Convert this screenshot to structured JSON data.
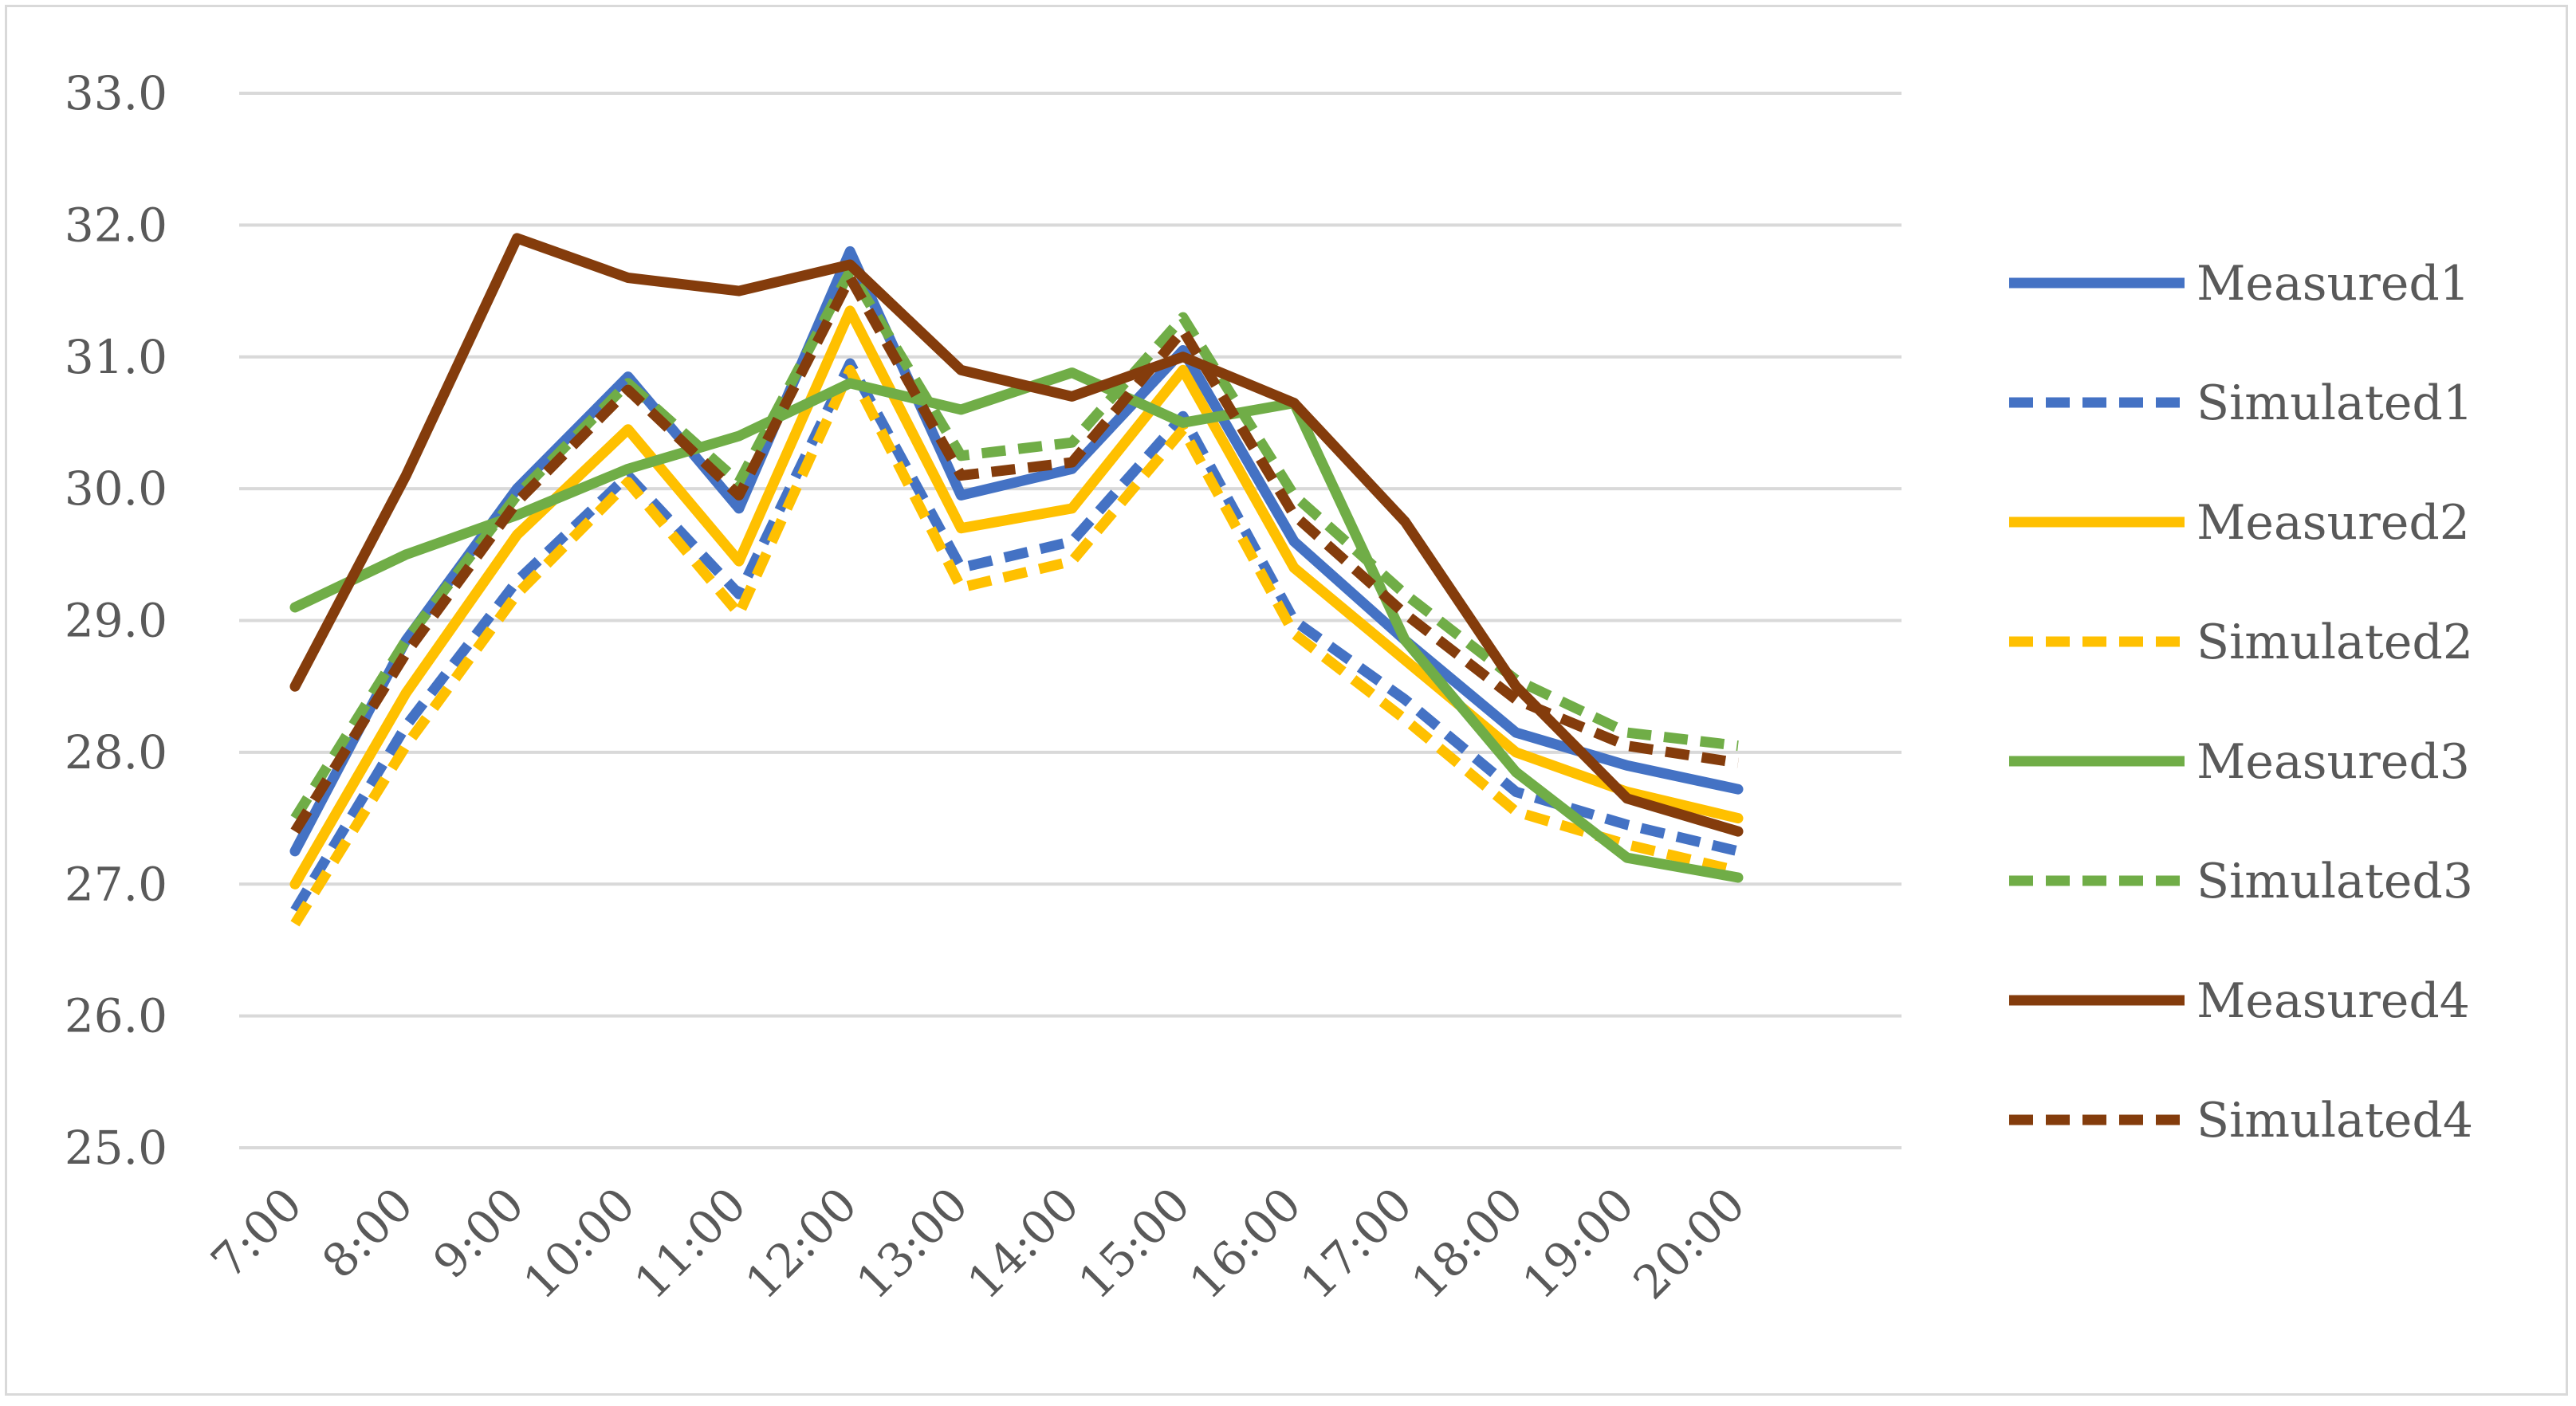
{
  "chart_data": {
    "type": "line",
    "title": "",
    "xlabel": "",
    "ylabel": "",
    "categories": [
      "7:00",
      "8:00",
      "9:00",
      "10:00",
      "11:00",
      "12:00",
      "13:00",
      "14:00",
      "15:00",
      "16:00",
      "17:00",
      "18:00",
      "19:00",
      "20:00"
    ],
    "ylim": [
      25.0,
      33.0
    ],
    "yticks": [
      "25.0",
      "26.0",
      "27.0",
      "28.0",
      "29.0",
      "30.0",
      "31.0",
      "32.0",
      "33.0"
    ],
    "grid": true,
    "legend_position": "right",
    "series": [
      {
        "name": "Measured1",
        "color": "#4472c4",
        "dashed": false,
        "values": [
          27.25,
          28.85,
          30.0,
          30.85,
          29.85,
          31.8,
          29.95,
          30.15,
          31.05,
          29.6,
          28.85,
          28.15,
          27.9,
          27.72
        ]
      },
      {
        "name": "Simulated1",
        "color": "#4472c4",
        "dashed": true,
        "values": [
          26.8,
          28.2,
          29.3,
          30.1,
          29.2,
          30.95,
          29.4,
          29.6,
          30.55,
          29.0,
          28.4,
          27.7,
          27.45,
          27.25
        ]
      },
      {
        "name": "Measured2",
        "color": "#ffc000",
        "dashed": false,
        "values": [
          27.0,
          28.45,
          29.65,
          30.45,
          29.45,
          31.35,
          29.7,
          29.85,
          30.9,
          29.4,
          28.7,
          28.0,
          27.7,
          27.5
        ]
      },
      {
        "name": "Simulated2",
        "color": "#ffc000",
        "dashed": true,
        "values": [
          26.7,
          28.05,
          29.2,
          30.05,
          29.05,
          30.9,
          29.25,
          29.45,
          30.45,
          28.9,
          28.25,
          27.55,
          27.3,
          27.1
        ]
      },
      {
        "name": "Measured3",
        "color": "#70ad47",
        "dashed": false,
        "values": [
          29.1,
          29.5,
          29.8,
          30.15,
          30.4,
          30.8,
          30.6,
          30.88,
          30.5,
          30.65,
          28.85,
          27.85,
          27.2,
          27.05
        ]
      },
      {
        "name": "Simulated3",
        "color": "#70ad47",
        "dashed": true,
        "values": [
          27.5,
          28.85,
          29.95,
          30.8,
          30.05,
          31.65,
          30.25,
          30.35,
          31.3,
          29.95,
          29.2,
          28.55,
          28.15,
          28.05
        ]
      },
      {
        "name": "Measured4",
        "color": "#843c0c",
        "dashed": false,
        "values": [
          28.5,
          30.1,
          31.9,
          31.6,
          31.5,
          31.7,
          30.9,
          30.7,
          31.0,
          30.65,
          29.75,
          28.5,
          27.65,
          27.4
        ]
      },
      {
        "name": "Simulated4",
        "color": "#843c0c",
        "dashed": true,
        "values": [
          27.4,
          28.75,
          29.9,
          30.75,
          29.95,
          31.6,
          30.1,
          30.2,
          31.2,
          29.8,
          29.05,
          28.4,
          28.05,
          27.92
        ]
      }
    ]
  }
}
